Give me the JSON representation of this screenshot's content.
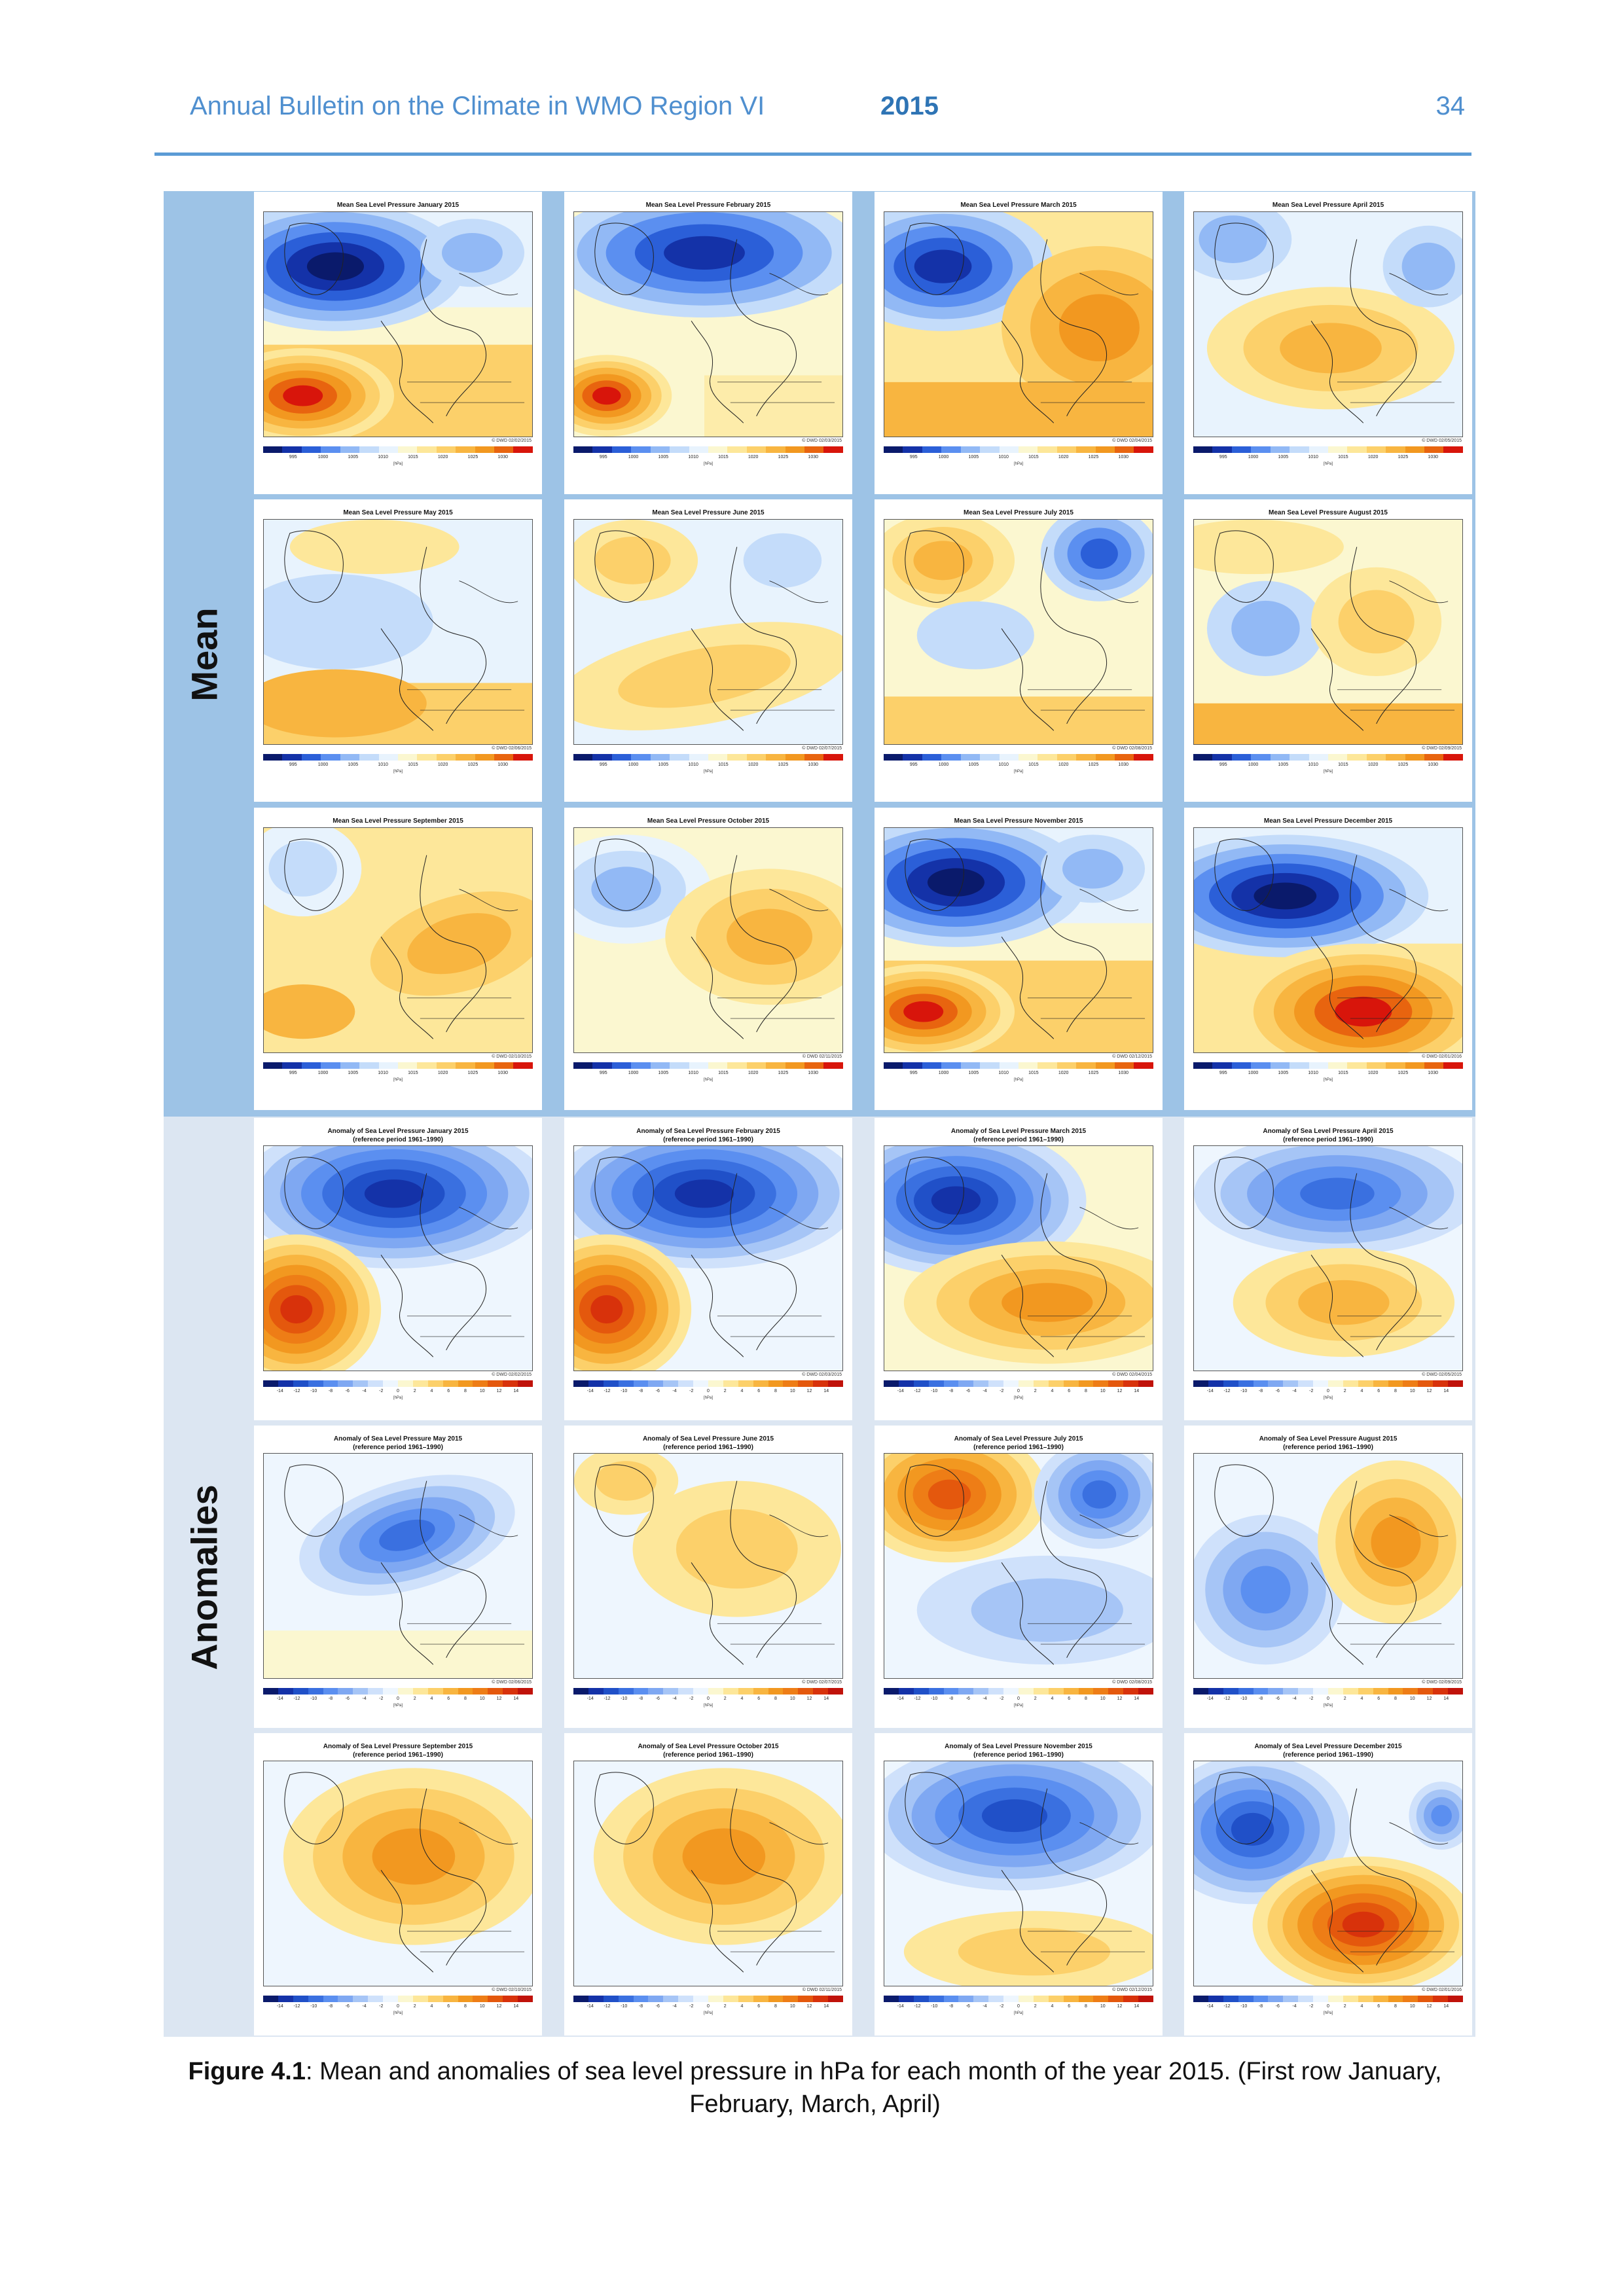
{
  "header": {
    "title": "Annual Bulletin on the Climate in WMO Region VI",
    "year": "2015",
    "page": "34"
  },
  "sections": {
    "mean": "Mean",
    "anomalies": "Anomalies"
  },
  "map_copyright_note": "© DWD",
  "colorbar_unit": "[hPa]",
  "mean_ticks": [
    "995",
    "1000",
    "1005",
    "1010",
    "1015",
    "1020",
    "1025",
    "1030"
  ],
  "anomaly_ticks": [
    "-14",
    "-12",
    "-10",
    "-8",
    "-6",
    "-4",
    "-2",
    "0",
    "2",
    "4",
    "6",
    "8",
    "10",
    "12",
    "14"
  ],
  "anomaly_subtitle": "(reference period 1961–1990)",
  "mean_panels": [
    {
      "title": "Mean Sea Level Pressure January 2015",
      "copyright": "© DWD 02/02/2015",
      "pattern": "strong_low_north_high_south"
    },
    {
      "title": "Mean Sea Level Pressure February 2015",
      "copyright": "© DWD 02/03/2015",
      "pattern": "low_north_high_sw"
    },
    {
      "title": "Mean Sea Level Pressure March 2015",
      "copyright": "© DWD 02/04/2015",
      "pattern": "low_nw_high_east"
    },
    {
      "title": "Mean Sea Level Pressure April 2015",
      "copyright": "© DWD 02/05/2015",
      "pattern": "weak_high_center"
    },
    {
      "title": "Mean Sea Level Pressure May 2015",
      "copyright": "© DWD 02/06/2015",
      "pattern": "weak_low_north"
    },
    {
      "title": "Mean Sea Level Pressure June 2015",
      "copyright": "© DWD 02/07/2015",
      "pattern": "weak_high_band"
    },
    {
      "title": "Mean Sea Level Pressure July 2015",
      "copyright": "© DWD 02/08/2015",
      "pattern": "high_greenland_low_ne"
    },
    {
      "title": "Mean Sea Level Pressure August 2015",
      "copyright": "© DWD 02/09/2015",
      "pattern": "weak_low_atlantic"
    },
    {
      "title": "Mean Sea Level Pressure September 2015",
      "copyright": "© DWD 02/10/2015",
      "pattern": "high_center"
    },
    {
      "title": "Mean Sea Level Pressure October 2015",
      "copyright": "© DWD 02/11/2015",
      "pattern": "high_east"
    },
    {
      "title": "Mean Sea Level Pressure November 2015",
      "copyright": "© DWD 02/12/2015",
      "pattern": "strong_low_north_high_south"
    },
    {
      "title": "Mean Sea Level Pressure December 2015",
      "copyright": "© DWD 02/01/2016",
      "pattern": "strong_low_north_strong_high_south"
    }
  ],
  "anomaly_panels": [
    {
      "title": "Anomaly of Sea Level Pressure January 2015",
      "copyright": "© DWD 02/02/2015",
      "pattern": "anom_neg_north_pos_sw"
    },
    {
      "title": "Anomaly of Sea Level Pressure February 2015",
      "copyright": "© DWD 02/03/2015",
      "pattern": "anom_neg_north_pos_sw"
    },
    {
      "title": "Anomaly of Sea Level Pressure March 2015",
      "copyright": "© DWD 02/04/2015",
      "pattern": "anom_neg_nw_pos_south"
    },
    {
      "title": "Anomaly of Sea Level Pressure April 2015",
      "copyright": "© DWD 02/05/2015",
      "pattern": "anom_neg_north_pos_center"
    },
    {
      "title": "Anomaly of Sea Level Pressure May 2015",
      "copyright": "© DWD 02/06/2015",
      "pattern": "anom_neg_center"
    },
    {
      "title": "Anomaly of Sea Level Pressure June 2015",
      "copyright": "© DWD 02/07/2015",
      "pattern": "anom_weak_pos"
    },
    {
      "title": "Anomaly of Sea Level Pressure July 2015",
      "copyright": "© DWD 02/08/2015",
      "pattern": "anom_pos_greenland_neg_ne"
    },
    {
      "title": "Anomaly of Sea Level Pressure August 2015",
      "copyright": "© DWD 02/09/2015",
      "pattern": "anom_neg_atlantic_pos_east"
    },
    {
      "title": "Anomaly of Sea Level Pressure September 2015",
      "copyright": "© DWD 02/10/2015",
      "pattern": "anom_pos_center"
    },
    {
      "title": "Anomaly of Sea Level Pressure October 2015",
      "copyright": "© DWD 02/11/2015",
      "pattern": "anom_pos_center"
    },
    {
      "title": "Anomaly of Sea Level Pressure November 2015",
      "copyright": "© DWD 02/12/2015",
      "pattern": "anom_neg_north_pos_south"
    },
    {
      "title": "Anomaly of Sea Level Pressure December 2015",
      "copyright": "© DWD 02/01/2016",
      "pattern": "anom_neg_nw_pos_se"
    }
  ],
  "caption": {
    "label": "Figure 4.1",
    "text": ": Mean and anomalies of sea level pressure in hPa for each month of the year 2015. (First row January, February, March, April)"
  },
  "colors": {
    "mean_scale": [
      "#0a1a6b",
      "#1432a8",
      "#2b5fd8",
      "#5b8ff0",
      "#92b9f5",
      "#c4dcfa",
      "#e8f3fd",
      "#fbf7d0",
      "#fde79a",
      "#fcd06a",
      "#f8b540",
      "#f29820",
      "#e8640f",
      "#d8150b"
    ],
    "anomaly_scale": [
      "#0a1a6b",
      "#1432a8",
      "#2050c8",
      "#3a70e0",
      "#5b8ff0",
      "#7fa8f2",
      "#a6c5f6",
      "#cfe1fb",
      "#eef6fe",
      "#fbf7d0",
      "#fde79a",
      "#fcd06a",
      "#f8b540",
      "#f29820",
      "#ee7d16",
      "#e4580d",
      "#d8320b",
      "#c0120a"
    ]
  }
}
